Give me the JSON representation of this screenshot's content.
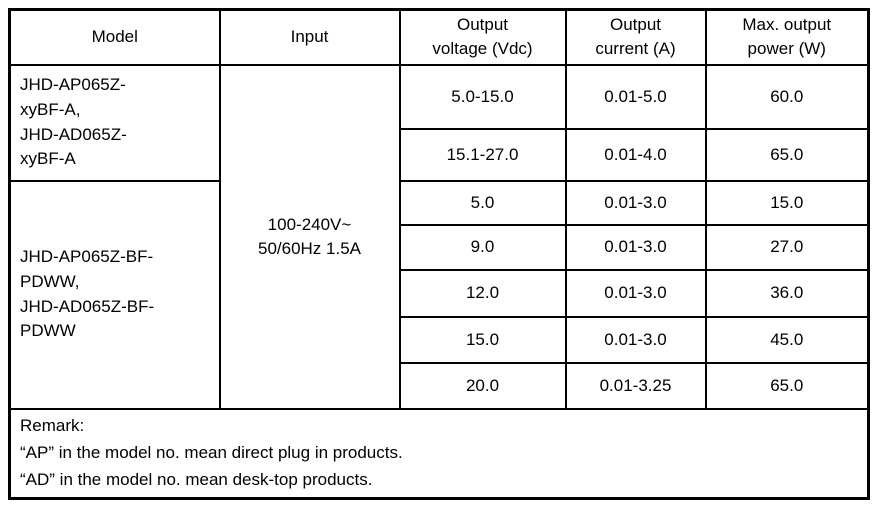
{
  "table": {
    "headers": {
      "model": "Model",
      "input": "Input",
      "output_voltage": "Output\nvoltage (Vdc)",
      "output_current": "Output\ncurrent (A)",
      "max_output_power": "Max. output\npower (W)"
    },
    "model_groups": [
      {
        "models": "JHD-AP065Z-\nxyBF-A,\nJHD-AD065Z-\nxyBF-A",
        "row_span": 2
      },
      {
        "models": "JHD-AP065Z-BF-\nPDWW,\nJHD-AD065Z-BF-\nPDWW",
        "row_span": 5
      }
    ],
    "input_value": "100-240V~\n50/60Hz 1.5A",
    "rows": [
      {
        "output_voltage": "5.0-15.0",
        "output_current": "0.01-5.0",
        "max_output_power": "60.0"
      },
      {
        "output_voltage": "15.1-27.0",
        "output_current": "0.01-4.0",
        "max_output_power": "65.0"
      },
      {
        "output_voltage": "5.0",
        "output_current": "0.01-3.0",
        "max_output_power": "15.0"
      },
      {
        "output_voltage": "9.0",
        "output_current": "0.01-3.0",
        "max_output_power": "27.0"
      },
      {
        "output_voltage": "12.0",
        "output_current": "0.01-3.0",
        "max_output_power": "36.0"
      },
      {
        "output_voltage": "15.0",
        "output_current": "0.01-3.0",
        "max_output_power": "45.0"
      },
      {
        "output_voltage": "20.0",
        "output_current": "0.01-3.25",
        "max_output_power": "65.0"
      }
    ],
    "remark": "Remark:\n“AP” in the model no. mean direct plug in products.\n“AD” in the model no. mean desk-top products."
  },
  "colors": {
    "border": "#000000",
    "background": "#ffffff",
    "text": "#000000"
  }
}
